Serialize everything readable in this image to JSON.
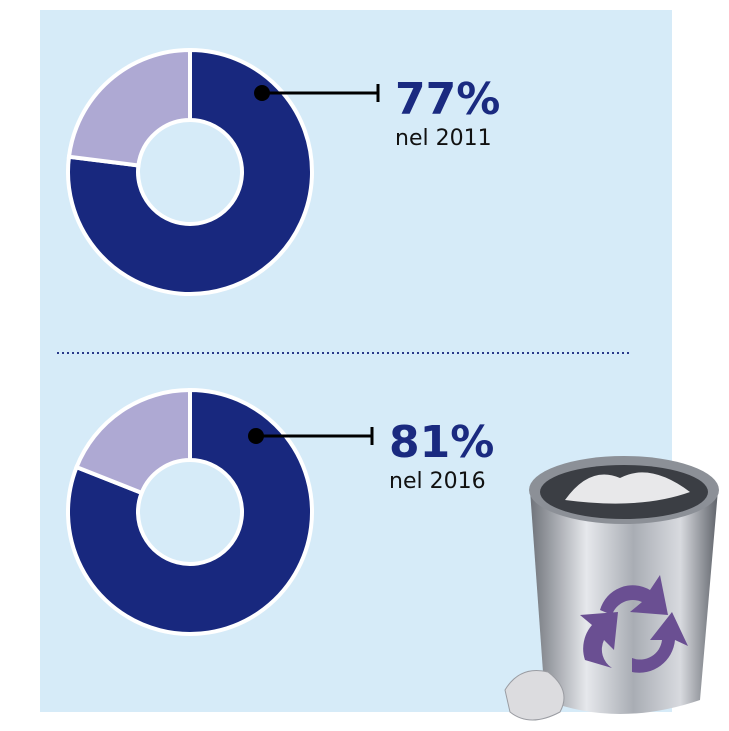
{
  "chart_data": [
    {
      "type": "pie",
      "donut": true,
      "values": [
        77,
        23
      ],
      "value_labels": [
        "77%",
        null
      ],
      "colors": [
        "#18287e",
        "#aea9d3"
      ],
      "annotation": "nel 2011"
    },
    {
      "type": "pie",
      "donut": true,
      "values": [
        81,
        19
      ],
      "value_labels": [
        "81%",
        null
      ],
      "colors": [
        "#18287e",
        "#aea9d3"
      ],
      "annotation": "nel 2016"
    }
  ]
}
